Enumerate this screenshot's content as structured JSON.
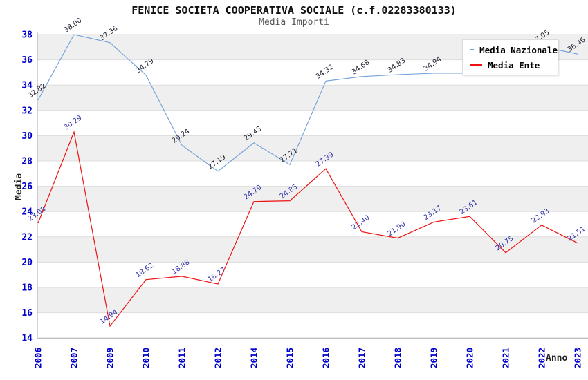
{
  "chart_data": {
    "type": "line",
    "title": "FENICE SOCIETA COOPERATIVA SOCIALE (c.f.02283380133)",
    "subtitle": "Media Importi",
    "xlabel": "Anno",
    "ylabel": "Media",
    "ylim": [
      14,
      38
    ],
    "ytick_step": 2,
    "yticks": [
      38,
      36,
      34,
      32,
      30,
      28,
      26,
      24,
      22,
      20,
      18,
      16,
      14
    ],
    "categories": [
      "2006",
      "2007",
      "2009",
      "2010",
      "2011",
      "2012",
      "2014",
      "2015",
      "2016",
      "2017",
      "2018",
      "2019",
      "2020",
      "2021",
      "2022",
      "2023"
    ],
    "series": [
      {
        "name": "Media Nazionale",
        "color": "#6E9FD8",
        "label_color": "#222233",
        "values": [
          32.82,
          38.0,
          37.36,
          34.79,
          29.24,
          27.19,
          29.43,
          27.71,
          34.32,
          34.68,
          34.83,
          34.94,
          34.95,
          34.85,
          37.05,
          36.46
        ],
        "labels": [
          "32.82",
          "38.00",
          "37.36",
          "34.79",
          "29.24",
          "27.19",
          "29.43",
          "27.71",
          "34.32",
          "34.68",
          "34.83",
          "34.94",
          "",
          "",
          "37.05",
          "36.46"
        ]
      },
      {
        "name": "Media Ente",
        "color": "#EE1111",
        "label_color": "#3333AA",
        "values": [
          23.08,
          30.29,
          14.94,
          18.62,
          18.88,
          18.27,
          24.79,
          24.85,
          27.39,
          22.4,
          21.9,
          23.17,
          23.61,
          20.75,
          22.93,
          21.51
        ],
        "labels": [
          "23.08",
          "30.29",
          "14.94",
          "18.62",
          "18.88",
          "18.27",
          "24.79",
          "24.85",
          "27.39",
          "22.40",
          "21.90",
          "23.17",
          "23.61",
          "20.75",
          "22.93",
          "21.51"
        ]
      }
    ],
    "legend_position": "top-right",
    "grid": {
      "style": "horizontal-bands",
      "band_color": "#EFEFEF",
      "gridline_color": "#DDDDDD",
      "axis_color": "#AAAAAA",
      "tick_label_color": "#0000CC"
    }
  }
}
